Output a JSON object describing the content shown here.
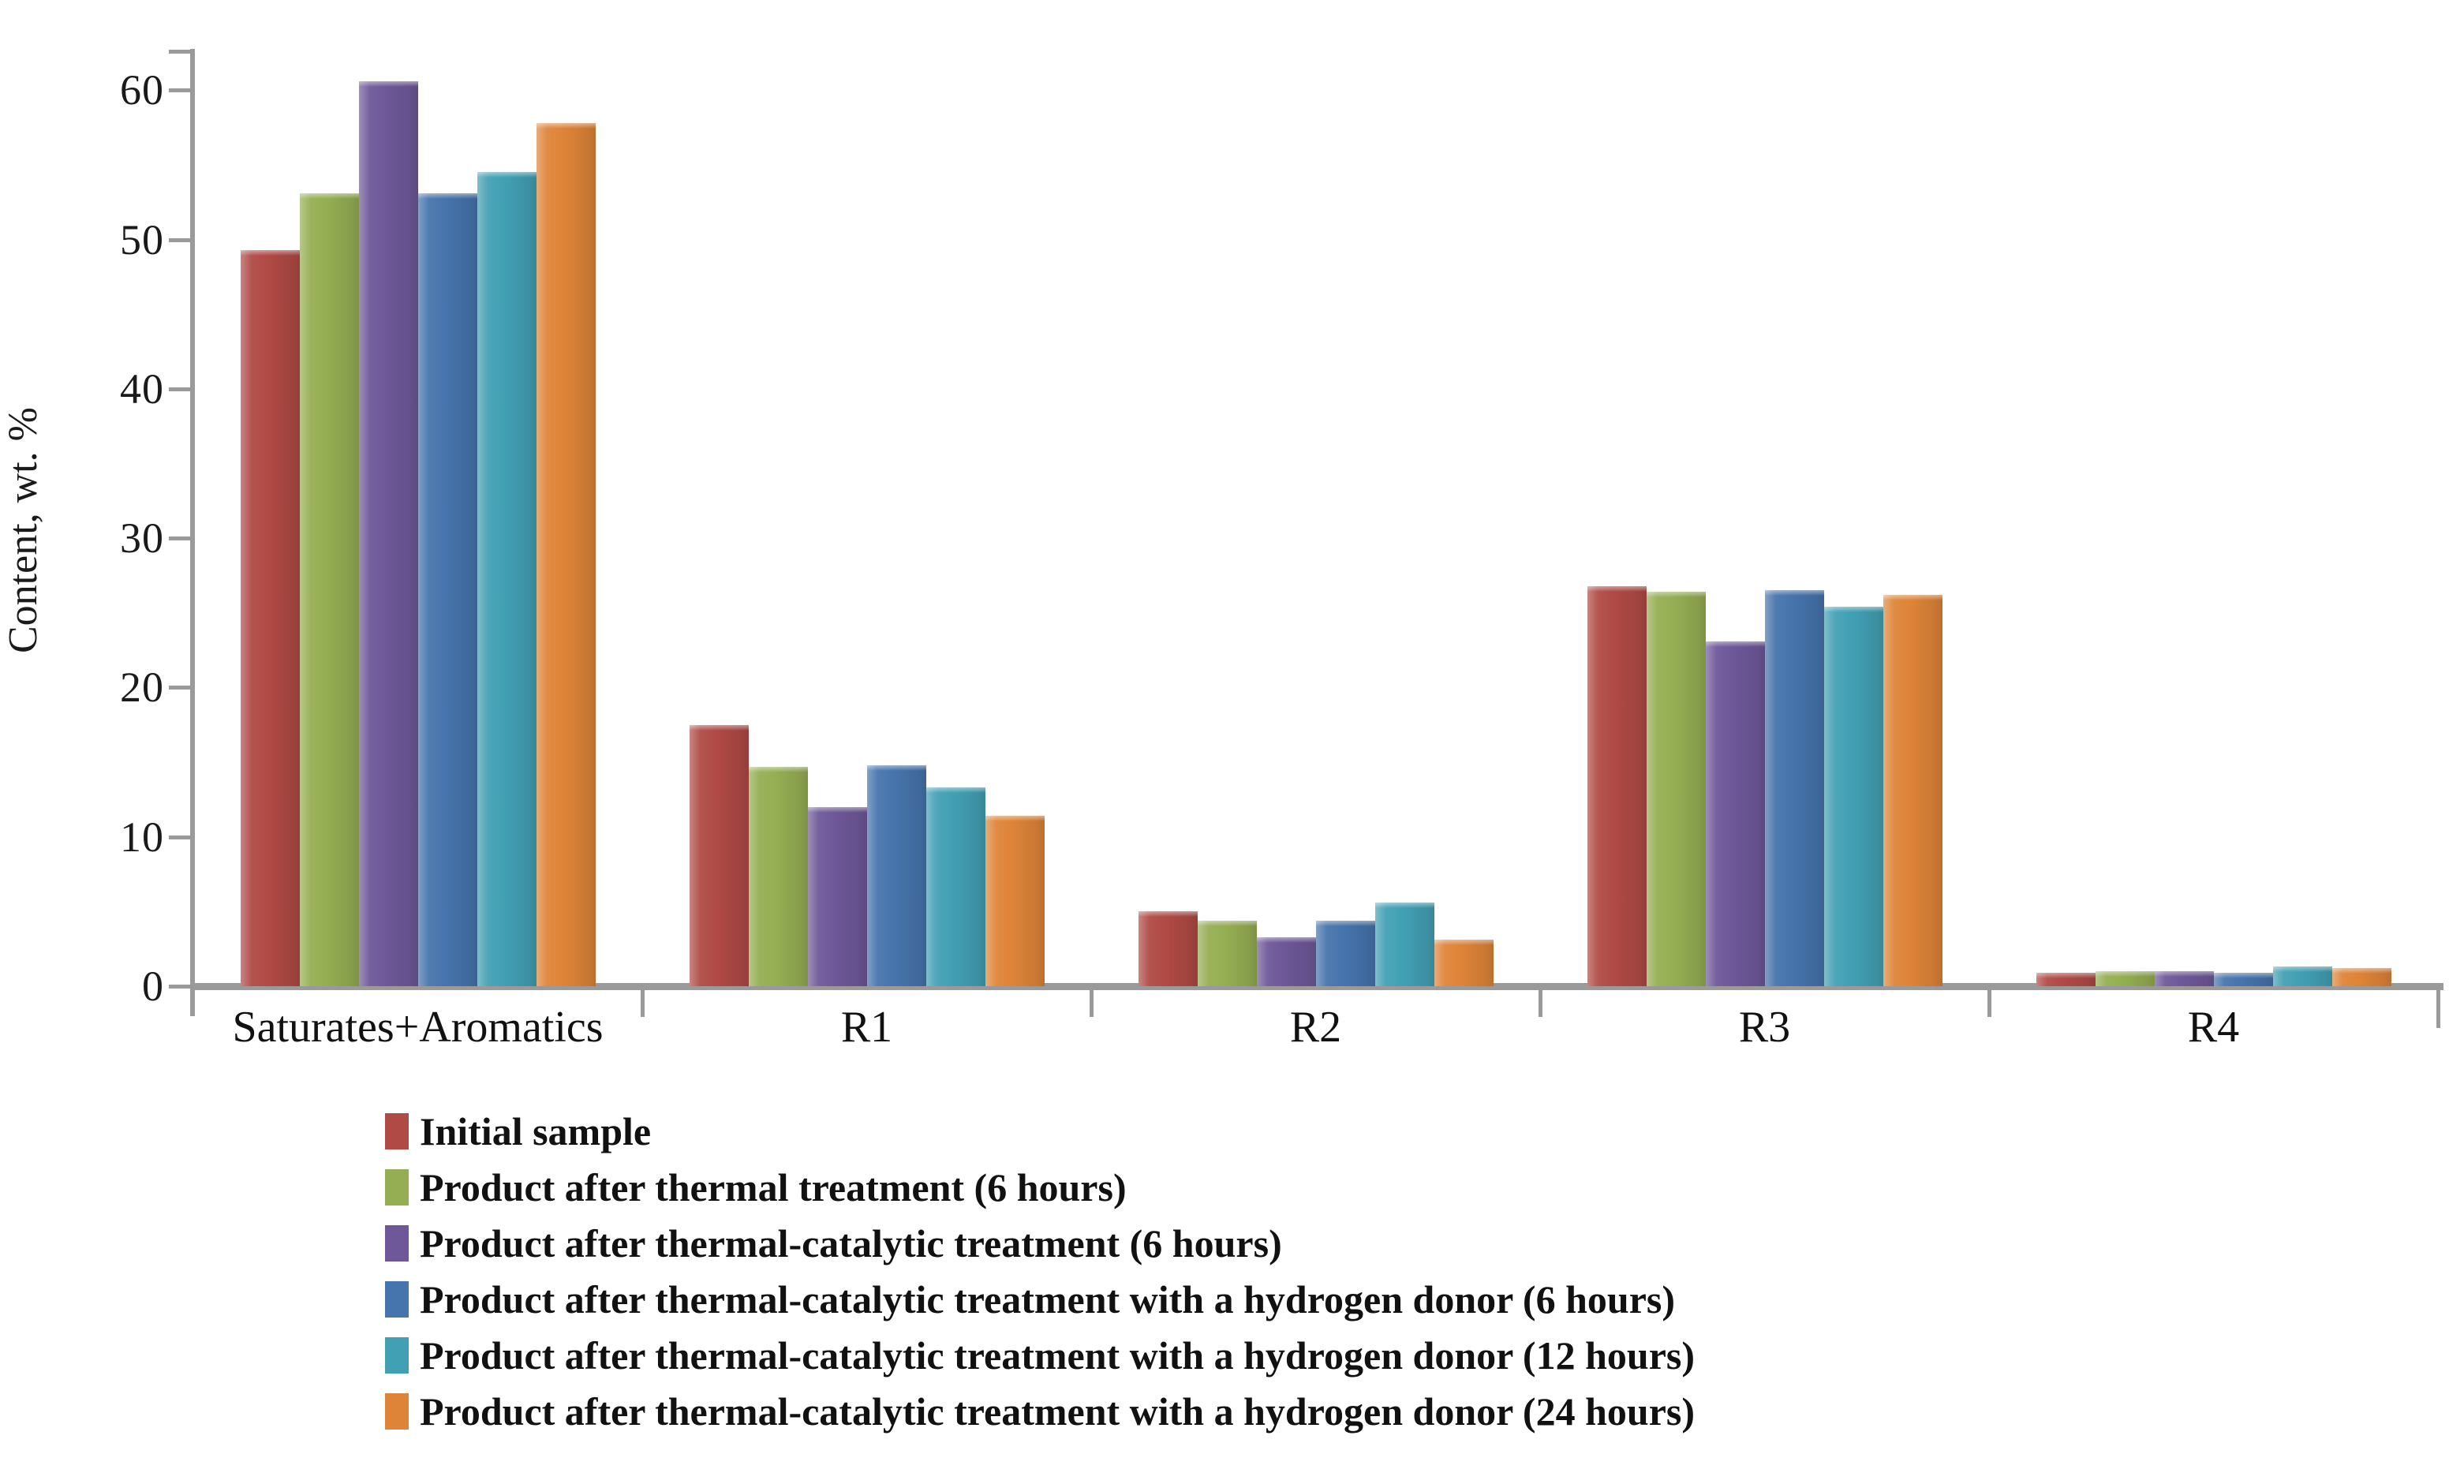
{
  "chart_data": {
    "type": "bar",
    "title": "",
    "xlabel": "",
    "ylabel": "Content, wt. %",
    "categories": [
      "Saturates+Aromatics",
      "R1",
      "R2",
      "R3",
      "R4"
    ],
    "series": [
      {
        "name": "Initial sample",
        "color": "#B04A45",
        "values": [
          49.3,
          17.5,
          5.0,
          26.8,
          0.9
        ]
      },
      {
        "name": "Product after thermal treatment (6 hours)",
        "color": "#95AE53",
        "values": [
          53.1,
          14.7,
          4.4,
          26.4,
          1.0
        ]
      },
      {
        "name": "Product after thermal-catalytic treatment (6 hours)",
        "color": "#6E5899",
        "values": [
          60.6,
          12.0,
          3.3,
          23.1,
          1.0
        ]
      },
      {
        "name": "Product after thermal-catalytic treatment with a hydrogen donor (6 hours)",
        "color": "#4674AC",
        "values": [
          53.1,
          14.8,
          4.4,
          26.5,
          0.9
        ]
      },
      {
        "name": "Product after thermal-catalytic treatment with a hydrogen donor (12 hours)",
        "color": "#42A0B4",
        "values": [
          54.5,
          13.3,
          5.6,
          25.4,
          1.3
        ]
      },
      {
        "name": "Product after thermal-catalytic treatment with a hydrogen donor (24 hours)",
        "color": "#DE8438",
        "values": [
          57.8,
          11.4,
          3.1,
          26.2,
          1.2
        ]
      }
    ],
    "yticks": [
      0,
      10,
      20,
      30,
      40,
      50,
      60
    ],
    "ylim": [
      0,
      62.6
    ],
    "grid": false,
    "legend_position": "bottom-left",
    "axis_color": "#9A9A9A"
  }
}
